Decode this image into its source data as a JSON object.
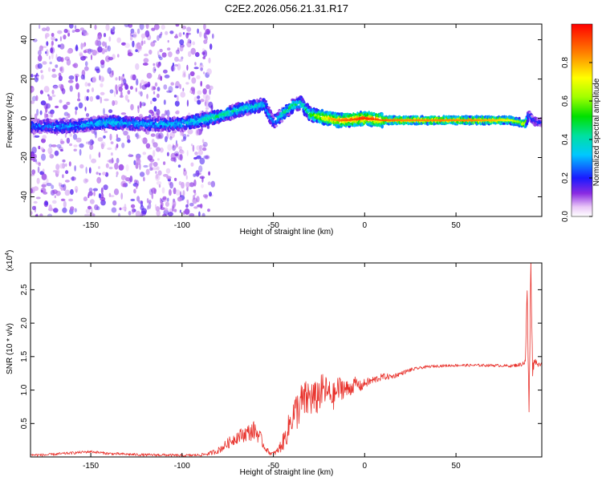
{
  "title": "C2E2.2026.056.21.31.R17",
  "chart_data": [
    {
      "type": "heatmap",
      "xlabel": "Height of straight line (km)",
      "ylabel": "Frequency (Hz)",
      "xlim": [
        -183,
        97
      ],
      "ylim": [
        -50,
        48
      ],
      "x_ticks": [
        -150,
        -100,
        -50,
        0,
        50
      ],
      "x_tick_labels": [
        "-150",
        "-100",
        "-50",
        "0",
        "50"
      ],
      "y_ticks": [
        -40,
        -20,
        0,
        20,
        40
      ],
      "y_tick_labels": [
        "-40",
        "-20",
        "0",
        "20",
        "40"
      ],
      "colorscale": "rainbow",
      "grid": false,
      "ridge": {
        "x": [
          -183,
          -160,
          -140,
          -120,
          -100,
          -90,
          -80,
          -70,
          -60,
          -55,
          -50,
          -45,
          -40,
          -35,
          -30,
          -25,
          -20,
          -15,
          -10,
          0,
          10,
          20,
          40,
          60,
          70,
          80,
          85,
          88,
          90,
          92,
          95
        ],
        "frequency": [
          -4,
          -4,
          -2,
          -3,
          -3,
          -1,
          1,
          4,
          6,
          7,
          -2,
          2,
          6,
          8,
          2,
          1,
          0,
          -1,
          -1,
          0,
          -1,
          -1,
          -1,
          -1,
          -1,
          -1,
          -2,
          -3,
          2,
          -1,
          -2
        ],
        "amplitude": [
          0.25,
          0.3,
          0.35,
          0.3,
          0.35,
          0.4,
          0.45,
          0.4,
          0.4,
          0.35,
          0.3,
          0.4,
          0.45,
          0.4,
          0.5,
          0.7,
          0.8,
          0.85,
          0.9,
          0.95,
          0.9,
          0.85,
          0.85,
          0.85,
          0.8,
          0.7,
          0.6,
          0.8,
          0.3,
          0.25,
          0.2
        ]
      }
    },
    {
      "type": "colorbar",
      "label": "Normalized spectral amplitude",
      "range": [
        0,
        1
      ],
      "ticks": [
        0.0,
        0.2,
        0.4,
        0.6,
        0.8
      ],
      "tick_labels": [
        "0.0",
        "0.2",
        "0.4",
        "0.6",
        "0.8"
      ]
    },
    {
      "type": "line",
      "xlabel": "Height of straight line (km)",
      "ylabel": "SNR (10 * v/v)",
      "y_multiplier": "(x10",
      "y_multiplier_exponent": "4",
      "y_multiplier_close": ")",
      "xlim": [
        -183,
        97
      ],
      "ylim": [
        0,
        2.9
      ],
      "x_ticks": [
        -150,
        -100,
        -50,
        0,
        50
      ],
      "x_tick_labels": [
        "-150",
        "-100",
        "-50",
        "0",
        "50"
      ],
      "y_ticks": [
        0.5,
        1.0,
        1.5,
        2.0,
        2.5
      ],
      "y_tick_labels": [
        "0.5",
        "1.0",
        "1.5",
        "2.0",
        "2.5"
      ],
      "color": "#e8302a",
      "grid": false,
      "series": [
        {
          "x": [
            -183,
            -175,
            -165,
            -150,
            -140,
            -130,
            -120,
            -110,
            -100,
            -90,
            -85,
            -80,
            -75,
            -70,
            -65,
            -60,
            -57,
            -55,
            -52,
            -50,
            -48,
            -45,
            -42,
            -40,
            -37,
            -35,
            -32,
            -30,
            -27,
            -25,
            -22,
            -20,
            -17,
            -15,
            -12,
            -10,
            -7,
            -5,
            -2,
            0,
            5,
            10,
            15,
            20,
            25,
            30,
            35,
            40,
            50,
            60,
            70,
            80,
            85,
            88,
            89,
            90,
            91,
            92,
            93,
            95,
            97
          ],
          "y": [
            0.03,
            0.03,
            0.05,
            0.08,
            0.05,
            0.04,
            0.03,
            0.03,
            0.02,
            0.03,
            0.05,
            0.1,
            0.2,
            0.3,
            0.35,
            0.4,
            0.28,
            0.15,
            0.06,
            0.05,
            0.08,
            0.2,
            0.4,
            0.6,
            0.7,
            0.8,
            0.85,
            0.9,
            0.85,
            0.95,
            1.0,
            0.95,
            0.9,
            1.0,
            1.05,
            1.0,
            1.05,
            1.1,
            1.05,
            1.1,
            1.15,
            1.2,
            1.2,
            1.25,
            1.3,
            1.33,
            1.35,
            1.36,
            1.37,
            1.37,
            1.37,
            1.36,
            1.38,
            1.42,
            2.5,
            0.6,
            2.9,
            1.3,
            1.45,
            1.38,
            1.4
          ],
          "noise_amplitude": [
            0.02,
            0.02,
            0.02,
            0.02,
            0.02,
            0.02,
            0.02,
            0.02,
            0.02,
            0.02,
            0.03,
            0.05,
            0.08,
            0.1,
            0.12,
            0.15,
            0.1,
            0.05,
            0.03,
            0.03,
            0.05,
            0.12,
            0.2,
            0.25,
            0.3,
            0.3,
            0.3,
            0.3,
            0.28,
            0.28,
            0.25,
            0.22,
            0.2,
            0.2,
            0.18,
            0.15,
            0.12,
            0.1,
            0.08,
            0.07,
            0.06,
            0.05,
            0.04,
            0.03,
            0.03,
            0.02,
            0.02,
            0.02,
            0.02,
            0.02,
            0.02,
            0.02,
            0.03,
            0.05,
            0.1,
            0.2,
            0.2,
            0.1,
            0.05,
            0.03,
            0.03
          ]
        }
      ]
    }
  ]
}
